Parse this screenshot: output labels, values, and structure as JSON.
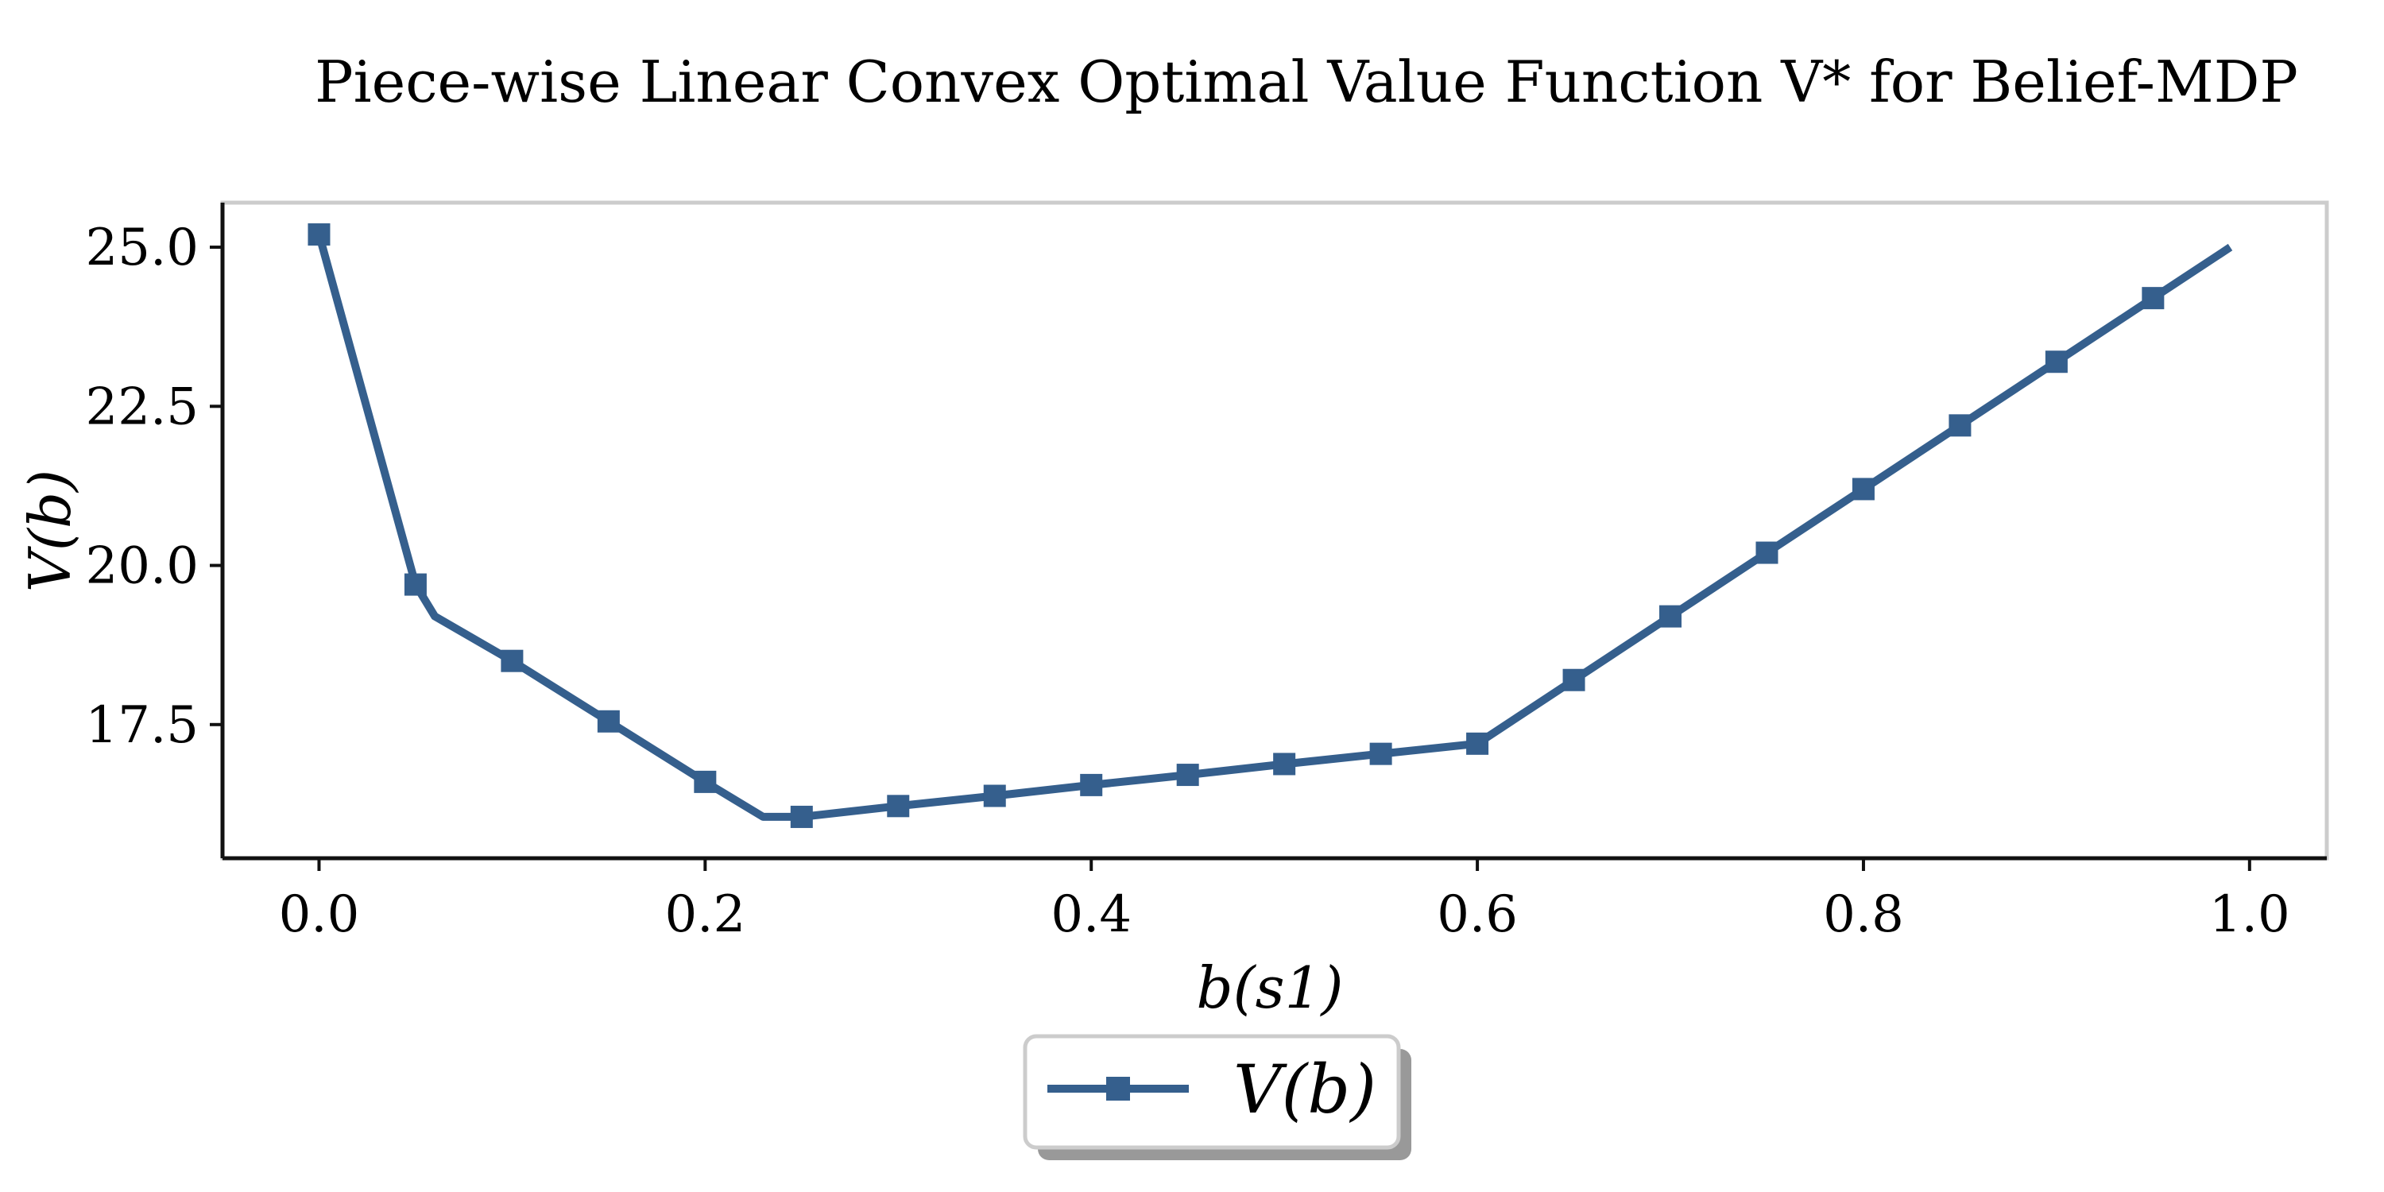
{
  "chart_data": {
    "type": "line",
    "title": "Piece-wise Linear Convex Optimal Value Function V* for Belief-MDP",
    "xlabel": "b(s1)",
    "ylabel": "V(b)",
    "xlim": [
      -0.05,
      1.04
    ],
    "ylim": [
      15.4,
      25.7
    ],
    "xticks": [
      0.0,
      0.2,
      0.4,
      0.6,
      0.8,
      1.0
    ],
    "xtick_labels": [
      "0.0",
      "0.2",
      "0.4",
      "0.6",
      "0.8",
      "1.0"
    ],
    "yticks": [
      17.5,
      20.0,
      22.5,
      25.0
    ],
    "ytick_labels": [
      "17.5",
      "20.0",
      "22.5",
      "25.0"
    ],
    "grid": false,
    "legend_position": "bottom-center, below plot",
    "series": [
      {
        "name": "V(b)",
        "color": "#355f8d",
        "marker": "square",
        "line": [
          [
            0.0,
            25.2
          ],
          [
            0.05,
            19.7
          ],
          [
            0.06,
            19.2
          ],
          [
            0.1,
            18.5
          ],
          [
            0.15,
            17.55
          ],
          [
            0.2,
            16.6
          ],
          [
            0.23,
            16.05
          ],
          [
            0.25,
            16.05
          ],
          [
            0.3,
            16.22
          ],
          [
            0.35,
            16.38
          ],
          [
            0.4,
            16.55
          ],
          [
            0.45,
            16.71
          ],
          [
            0.5,
            16.88
          ],
          [
            0.55,
            17.04
          ],
          [
            0.6,
            17.2
          ],
          [
            0.65,
            18.2
          ],
          [
            0.7,
            19.2
          ],
          [
            0.75,
            20.2
          ],
          [
            0.8,
            21.2
          ],
          [
            0.85,
            22.2
          ],
          [
            0.9,
            23.2
          ],
          [
            0.95,
            24.2
          ],
          [
            0.99,
            25.0
          ]
        ],
        "markers": [
          [
            0.0,
            25.2
          ],
          [
            0.05,
            19.7
          ],
          [
            0.1,
            18.5
          ],
          [
            0.15,
            17.55
          ],
          [
            0.2,
            16.6
          ],
          [
            0.25,
            16.05
          ],
          [
            0.3,
            16.22
          ],
          [
            0.35,
            16.38
          ],
          [
            0.4,
            16.55
          ],
          [
            0.45,
            16.71
          ],
          [
            0.5,
            16.88
          ],
          [
            0.55,
            17.04
          ],
          [
            0.6,
            17.2
          ],
          [
            0.65,
            18.2
          ],
          [
            0.7,
            19.2
          ],
          [
            0.75,
            20.2
          ],
          [
            0.8,
            21.2
          ],
          [
            0.85,
            22.2
          ],
          [
            0.9,
            23.2
          ],
          [
            0.95,
            24.2
          ]
        ]
      }
    ]
  }
}
